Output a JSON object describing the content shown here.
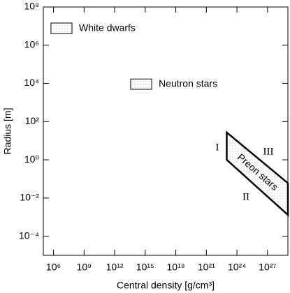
{
  "chart_data": {
    "type": "region",
    "xlabel": "Central density  [g/cm³]",
    "ylabel": "Radius  [m]",
    "xscale": "log",
    "yscale": "log",
    "xlim": [
      100000.0,
      1e+29
    ],
    "ylim": [
      1e-05,
      100000000.0
    ],
    "xticks": [
      {
        "value": 1000000.0,
        "label": "10⁶"
      },
      {
        "value": 1000000000.0,
        "label": "10⁹"
      },
      {
        "value": 1000000000000.0,
        "label": "10¹²"
      },
      {
        "value": 1000000000000000.0,
        "label": "10¹⁵"
      },
      {
        "value": 1e+18,
        "label": "10¹⁸"
      },
      {
        "value": 1e+21,
        "label": "10²¹"
      },
      {
        "value": 1e+24,
        "label": "10²⁴"
      },
      {
        "value": 1e+27,
        "label": "10²⁷"
      }
    ],
    "yticks": [
      {
        "value": 0.0001,
        "label": "10⁻⁴"
      },
      {
        "value": 0.01,
        "label": "10⁻²"
      },
      {
        "value": 1,
        "label": "10⁰"
      },
      {
        "value": 100,
        "label": "10²"
      },
      {
        "value": 10000.0,
        "label": "10⁴"
      },
      {
        "value": 1000000.0,
        "label": "10⁶"
      },
      {
        "value": 100000000.0,
        "label": "10⁸"
      }
    ],
    "regions": [
      {
        "name": "White dwarfs",
        "color": "#0000cc",
        "x": [
          560000.0,
          65000000.0,
          65000000.0,
          560000.0
        ],
        "y": [
          14500000.0,
          14500000.0,
          4000000.0,
          4000000.0
        ]
      },
      {
        "name": "Neutron stars",
        "color": "#118811",
        "x": [
          37000000000000.0,
          4300000000000000.0,
          4300000000000000.0,
          37000000000000.0
        ],
        "y": [
          17000.0,
          17000.0,
          4900.0,
          4900.0
        ]
      },
      {
        "name": "Preon stars",
        "color": "#ee1111",
        "x": [
          1e+23,
          1e+29,
          1e+29,
          1e+23
        ],
        "y": [
          27,
          0.06,
          0.0013,
          1
        ]
      }
    ],
    "annotations": [
      "I",
      "II",
      "III"
    ]
  }
}
